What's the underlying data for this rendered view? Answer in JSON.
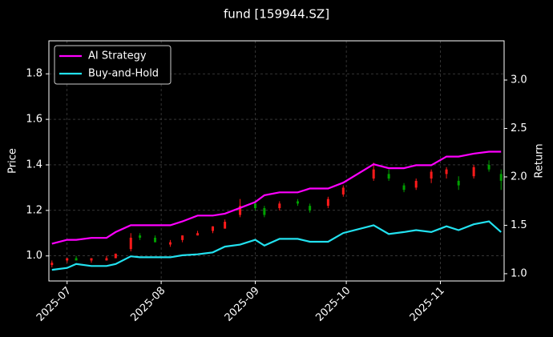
{
  "chart_data": {
    "type": "candlestick",
    "title": "fund [159944.SZ]",
    "ylabel": "Price",
    "y2label": "Return",
    "x": [
      "2025-06-26",
      "2025-07-01",
      "2025-07-04",
      "2025-07-09",
      "2025-07-14",
      "2025-07-17",
      "2025-07-22",
      "2025-07-25",
      "2025-07-30",
      "2025-08-04",
      "2025-08-08",
      "2025-08-13",
      "2025-08-18",
      "2025-08-22",
      "2025-08-27",
      "2025-09-01",
      "2025-09-04",
      "2025-09-09",
      "2025-09-15",
      "2025-09-19",
      "2025-09-25",
      "2025-09-30",
      "2025-10-10",
      "2025-10-15",
      "2025-10-20",
      "2025-10-24",
      "2025-10-29",
      "2025-11-03",
      "2025-11-07",
      "2025-11-12",
      "2025-11-17",
      "2025-11-21"
    ],
    "xlim": [
      "2025-06-25",
      "2025-11-22"
    ],
    "xticks": [
      {
        "value": "2025-07-01",
        "label": "2025-07"
      },
      {
        "value": "2025-08-01",
        "label": "2025-08"
      },
      {
        "value": "2025-09-01",
        "label": "2025-09"
      },
      {
        "value": "2025-10-01",
        "label": "2025-10"
      },
      {
        "value": "2025-11-01",
        "label": "2025-11"
      }
    ],
    "ylim": [
      0.89,
      1.945
    ],
    "yticks": [
      {
        "value": 1,
        "label": "1.0"
      },
      1.2,
      1.4,
      1.6,
      1.8
    ],
    "y2lim": [
      0.925,
      3.405
    ],
    "y2ticks": [
      {
        "value": 1,
        "label": "1.0"
      },
      1.5,
      {
        "value": 2,
        "label": "2.0"
      },
      2.5,
      {
        "value": 3,
        "label": "3.0"
      }
    ],
    "candles": {
      "up_color": "#ff1a1a",
      "down_color": "#00a000",
      "open": [
        0.96,
        0.98,
        0.99,
        0.98,
        0.98,
        0.99,
        1.03,
        1.09,
        1.08,
        1.05,
        1.07,
        1.09,
        1.11,
        1.12,
        1.18,
        1.23,
        1.21,
        1.21,
        1.24,
        1.22,
        1.22,
        1.27,
        1.34,
        1.36,
        1.31,
        1.3,
        1.34,
        1.36,
        1.33,
        1.35,
        1.4,
        1.36
      ],
      "high": [
        0.98,
        0.99,
        1.0,
        0.99,
        1.0,
        1.01,
        1.1,
        1.1,
        1.09,
        1.07,
        1.09,
        1.11,
        1.13,
        1.16,
        1.25,
        1.24,
        1.22,
        1.24,
        1.25,
        1.23,
        1.26,
        1.31,
        1.41,
        1.38,
        1.32,
        1.34,
        1.38,
        1.39,
        1.35,
        1.4,
        1.42,
        1.38
      ],
      "low": [
        0.95,
        0.97,
        0.98,
        0.97,
        0.98,
        0.99,
        1.02,
        1.07,
        1.06,
        1.04,
        1.06,
        1.09,
        1.1,
        1.12,
        1.17,
        1.2,
        1.17,
        1.2,
        1.22,
        1.19,
        1.21,
        1.26,
        1.33,
        1.33,
        1.28,
        1.29,
        1.32,
        1.34,
        1.29,
        1.34,
        1.37,
        1.29
      ],
      "close": [
        0.97,
        0.99,
        0.98,
        0.99,
        0.99,
        1.01,
        1.08,
        1.08,
        1.06,
        1.06,
        1.09,
        1.1,
        1.13,
        1.15,
        1.22,
        1.21,
        1.18,
        1.23,
        1.23,
        1.2,
        1.25,
        1.3,
        1.38,
        1.34,
        1.29,
        1.33,
        1.37,
        1.38,
        1.31,
        1.39,
        1.38,
        1.33
      ]
    },
    "series": [
      {
        "name": "AI Strategy",
        "color": "#ff00ff",
        "axis": "y2",
        "values": [
          1.31,
          1.35,
          1.35,
          1.37,
          1.37,
          1.43,
          1.5,
          1.5,
          1.5,
          1.5,
          1.54,
          1.6,
          1.6,
          1.62,
          1.68,
          1.74,
          1.81,
          1.84,
          1.84,
          1.88,
          1.88,
          1.94,
          2.13,
          2.09,
          2.09,
          2.12,
          2.12,
          2.21,
          2.21,
          2.24,
          2.26,
          2.26
        ]
      },
      {
        "name": "Buy-and-Hold",
        "color": "#22e2f0",
        "axis": "y2",
        "values": [
          1.04,
          1.06,
          1.1,
          1.08,
          1.08,
          1.1,
          1.18,
          1.17,
          1.17,
          1.17,
          1.19,
          1.2,
          1.22,
          1.28,
          1.3,
          1.35,
          1.29,
          1.36,
          1.36,
          1.33,
          1.33,
          1.42,
          1.5,
          1.41,
          1.43,
          1.45,
          1.43,
          1.49,
          1.45,
          1.51,
          1.54,
          1.43
        ]
      }
    ],
    "legend": "upper left",
    "grid": true
  }
}
